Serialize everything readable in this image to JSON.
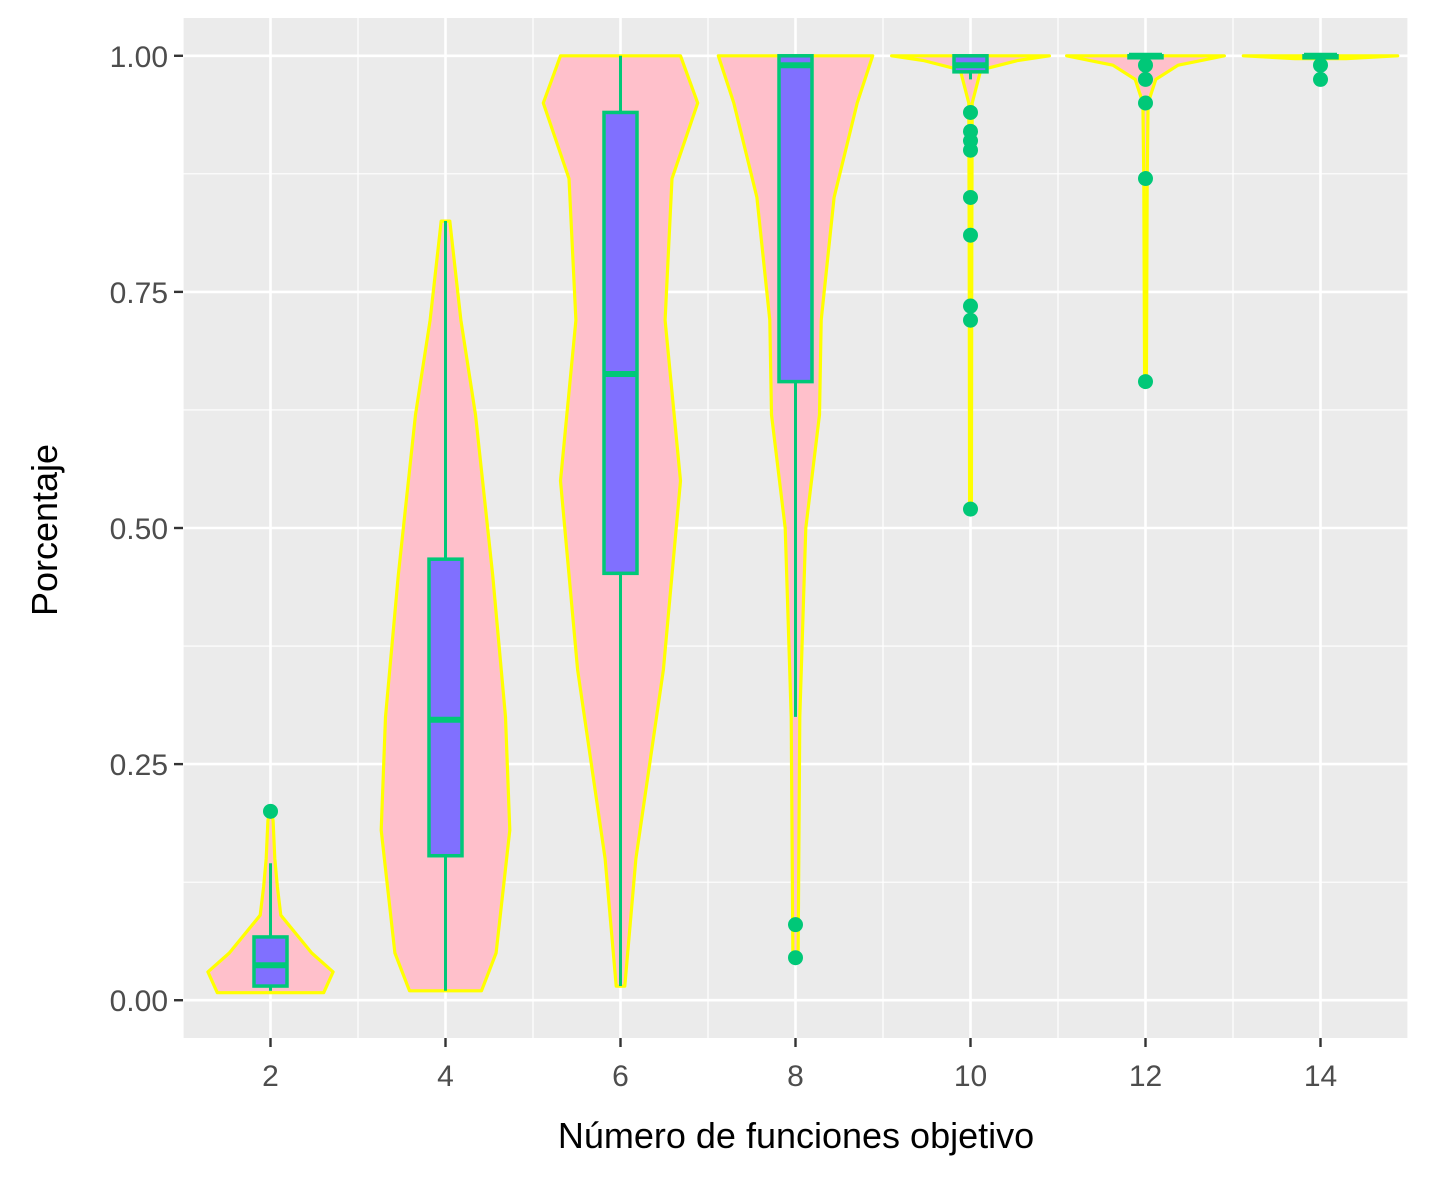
{
  "chart_data": {
    "type": "violin",
    "title": "",
    "xlabel": "Número de funciones objetivo",
    "ylabel": "Porcentaje",
    "xlim": [
      1,
      15
    ],
    "ylim": [
      -0.04,
      1.04
    ],
    "x_ticks": [
      "2",
      "4",
      "6",
      "8",
      "10",
      "12",
      "14"
    ],
    "y_ticks": [
      "0.00",
      "0.25",
      "0.50",
      "0.75",
      "1.00"
    ],
    "grid": true,
    "legend": "none",
    "colors": {
      "panel": "#ebebeb",
      "grid": "#ffffff",
      "violin_fill": "#ffc0cb",
      "violin_outline": "#ffff00",
      "box_fill": "#8070ff",
      "box_outline": "#00c878",
      "outlier": "#00c878"
    },
    "groups": [
      {
        "x": 2,
        "box": {
          "min": 0.01,
          "q1": 0.015,
          "median": 0.037,
          "q3": 0.067,
          "max": 0.145
        },
        "outliers": [
          0.2
        ],
        "violin": [
          [
            0.008,
            0.62
          ],
          [
            0.03,
            0.73
          ],
          [
            0.05,
            0.48
          ],
          [
            0.09,
            0.12
          ],
          [
            0.12,
            0.08
          ],
          [
            0.15,
            0.05
          ],
          [
            0.19,
            0.03
          ],
          [
            0.2,
            0.01
          ]
        ]
      },
      {
        "x": 4,
        "box": {
          "min": 0.01,
          "q1": 0.153,
          "median": 0.297,
          "q3": 0.467,
          "max": 0.825
        },
        "outliers": [],
        "violin": [
          [
            0.01,
            0.42
          ],
          [
            0.05,
            0.59
          ],
          [
            0.18,
            0.75
          ],
          [
            0.3,
            0.7
          ],
          [
            0.45,
            0.55
          ],
          [
            0.62,
            0.35
          ],
          [
            0.72,
            0.18
          ],
          [
            0.825,
            0.05
          ]
        ]
      },
      {
        "x": 6,
        "box": {
          "min": 0.015,
          "q1": 0.452,
          "median": 0.663,
          "q3": 0.94,
          "max": 1.0
        },
        "outliers": [],
        "violin": [
          [
            0.015,
            0.05
          ],
          [
            0.15,
            0.18
          ],
          [
            0.35,
            0.5
          ],
          [
            0.55,
            0.7
          ],
          [
            0.72,
            0.52
          ],
          [
            0.87,
            0.6
          ],
          [
            0.95,
            0.9
          ],
          [
            1.0,
            0.7
          ]
        ]
      },
      {
        "x": 8,
        "box": {
          "min": 0.3,
          "q1": 0.655,
          "median": 0.99,
          "q3": 1.0,
          "max": 1.0
        },
        "outliers": [
          0.08,
          0.045
        ],
        "violin": [
          [
            0.045,
            0.03
          ],
          [
            0.3,
            0.05
          ],
          [
            0.5,
            0.12
          ],
          [
            0.62,
            0.28
          ],
          [
            0.72,
            0.3
          ],
          [
            0.85,
            0.45
          ],
          [
            0.95,
            0.72
          ],
          [
            1.0,
            0.9
          ]
        ]
      },
      {
        "x": 10,
        "box": {
          "min": 0.975,
          "q1": 0.983,
          "median": 0.99,
          "q3": 1.0,
          "max": 1.0
        },
        "outliers": [
          0.94,
          0.92,
          0.91,
          0.9,
          0.85,
          0.81,
          0.735,
          0.72,
          0.52
        ],
        "violin": [
          [
            0.52,
            0.01
          ],
          [
            0.8,
            0.015
          ],
          [
            0.95,
            0.02
          ],
          [
            0.985,
            0.12
          ],
          [
            0.995,
            0.55
          ],
          [
            1.0,
            0.92
          ]
        ]
      },
      {
        "x": 12,
        "box": {
          "min": 1.0,
          "q1": 1.0,
          "median": 1.0,
          "q3": 1.0,
          "max": 1.0
        },
        "outliers": [
          0.99,
          0.975,
          0.95,
          0.87,
          0.655
        ],
        "violin": [
          [
            0.655,
            0.01
          ],
          [
            0.87,
            0.02
          ],
          [
            0.95,
            0.03
          ],
          [
            0.975,
            0.12
          ],
          [
            0.99,
            0.38
          ],
          [
            1.0,
            0.92
          ]
        ]
      },
      {
        "x": 14,
        "box": {
          "min": 1.0,
          "q1": 1.0,
          "median": 1.0,
          "q3": 1.0,
          "max": 1.0
        },
        "outliers": [
          0.99,
          0.975
        ],
        "violin": [
          [
            0.997,
            0.3
          ],
          [
            1.0,
            0.9
          ]
        ]
      }
    ]
  }
}
